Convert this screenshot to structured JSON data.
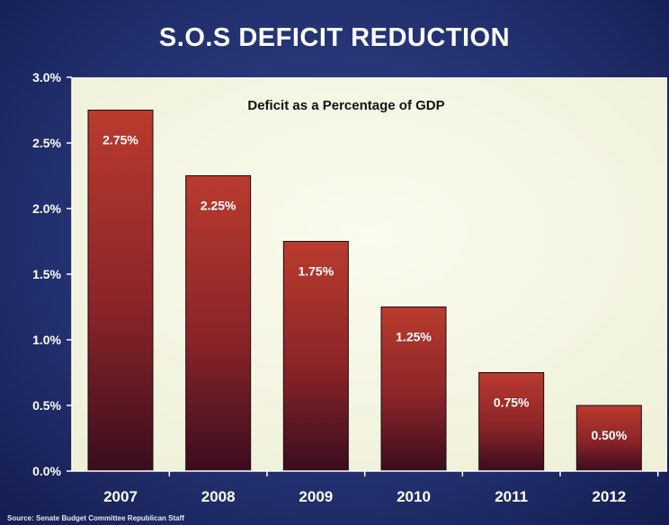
{
  "page": {
    "title": "S.O.S DEFICIT REDUCTION",
    "source": "Source: Senate Budget Committee Republican Staff"
  },
  "colors": {
    "background": "#22306f",
    "plot_area": "#f6f7e4",
    "bar_top": "#b93b2e",
    "bar_bottom": "#3a0d1e",
    "axis": "#ffffff"
  },
  "chart_data": {
    "type": "bar",
    "title": "S.O.S DEFICIT REDUCTION",
    "subtitle": "Deficit as a Percentage of GDP",
    "xlabel": "",
    "ylabel": "",
    "categories": [
      "2007",
      "2008",
      "2009",
      "2010",
      "2011",
      "2012"
    ],
    "values": [
      2.75,
      2.25,
      1.75,
      1.25,
      0.75,
      0.5
    ],
    "data_labels": [
      "2.75%",
      "2.25%",
      "1.75%",
      "1.25%",
      "0.75%",
      "0.50%"
    ],
    "ylim": [
      0,
      3.0
    ],
    "yticks": [
      0,
      0.5,
      1.0,
      1.5,
      2.0,
      2.5,
      3.0
    ],
    "ytick_labels": [
      "0.0%",
      "0.5%",
      "1.0%",
      "1.5%",
      "2.0%",
      "2.5%",
      "3.0%"
    ],
    "grid": false,
    "legend": "none"
  }
}
